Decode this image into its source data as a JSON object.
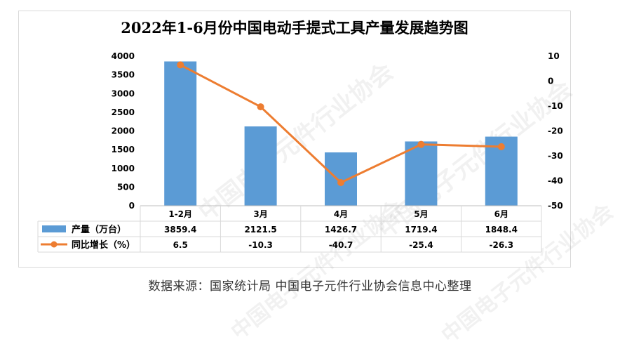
{
  "title": "2022年1-6月份中国电动手提式工具产量发展趋势图",
  "source": "数据来源：国家统计局   中国电子元件行业协会信息中心整理",
  "watermark": "中国电子元件行业协会",
  "colors": {
    "bar": "#5b9bd5",
    "line": "#ed7d31",
    "grid": "#d9d9d9",
    "axis_text": "#000000"
  },
  "chart_data": {
    "type": "bar",
    "categories": [
      "1-2月",
      "3月",
      "4月",
      "5月",
      "6月"
    ],
    "series": [
      {
        "name": "产量（万台）",
        "type": "bar",
        "axis": "left",
        "values": [
          3859.4,
          2121.5,
          1426.7,
          1719.4,
          1848.4
        ],
        "labels": [
          "3859.4",
          "2121.5",
          "1426.7",
          "1719.4",
          "1848.4"
        ]
      },
      {
        "name": "同比增长（%）",
        "type": "line",
        "axis": "right",
        "values": [
          6.5,
          -10.3,
          -40.7,
          -25.4,
          -26.3
        ],
        "labels": [
          "6.5",
          "-10.3",
          "-40.7",
          "-25.4",
          "-26.3"
        ]
      }
    ],
    "y_left": {
      "min": 0,
      "max": 4000,
      "step": 500,
      "ticks": [
        "0",
        "500",
        "1000",
        "1500",
        "2000",
        "2500",
        "3000",
        "3500",
        "4000"
      ]
    },
    "y_right": {
      "min": -50,
      "max": 10,
      "step": 10,
      "ticks": [
        "-50",
        "-40",
        "-30",
        "-20",
        "-10",
        "0",
        "10"
      ]
    },
    "data_table": true,
    "grid": false
  }
}
